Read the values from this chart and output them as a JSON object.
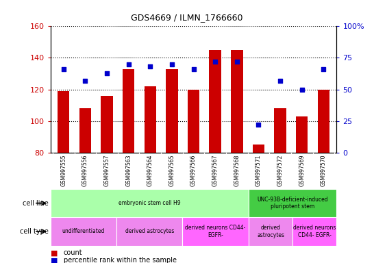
{
  "title": "GDS4669 / ILMN_1766660",
  "samples": [
    "GSM997555",
    "GSM997556",
    "GSM997557",
    "GSM997563",
    "GSM997564",
    "GSM997565",
    "GSM997566",
    "GSM997567",
    "GSM997568",
    "GSM997571",
    "GSM997572",
    "GSM997569",
    "GSM997570"
  ],
  "count_values": [
    119,
    108,
    116,
    133,
    122,
    133,
    120,
    145,
    145,
    85,
    108,
    103,
    120
  ],
  "percentile_values": [
    66,
    57,
    63,
    70,
    68,
    70,
    66,
    72,
    72,
    22,
    57,
    50,
    66
  ],
  "ylim_left": [
    80,
    160
  ],
  "ylim_right": [
    0,
    100
  ],
  "yticks_left": [
    80,
    100,
    120,
    140,
    160
  ],
  "yticks_right": [
    0,
    25,
    50,
    75,
    100
  ],
  "ytick_labels_right": [
    "0",
    "25",
    "50",
    "75",
    "100%"
  ],
  "bar_color": "#cc0000",
  "dot_color": "#0000cc",
  "bar_bottom": 80,
  "cell_line_groups": [
    {
      "label": "embryonic stem cell H9",
      "start": 0,
      "end": 9,
      "color": "#aaffaa"
    },
    {
      "label": "UNC-93B-deficient-induced\npluripotent stem",
      "start": 9,
      "end": 13,
      "color": "#44cc44"
    }
  ],
  "cell_type_groups": [
    {
      "label": "undifferentiated",
      "start": 0,
      "end": 3,
      "color": "#ee88ee"
    },
    {
      "label": "derived astrocytes",
      "start": 3,
      "end": 6,
      "color": "#ee88ee"
    },
    {
      "label": "derived neurons CD44-\nEGFR-",
      "start": 6,
      "end": 9,
      "color": "#ff66ff"
    },
    {
      "label": "derived\nastrocytes",
      "start": 9,
      "end": 11,
      "color": "#ee88ee"
    },
    {
      "label": "derived neurons\nCD44- EGFR-",
      "start": 11,
      "end": 13,
      "color": "#ff66ff"
    }
  ],
  "tick_color_left": "#cc0000",
  "tick_color_right": "#0000cc",
  "xtick_bg_color": "#cccccc",
  "cell_line_label_color": "#000000",
  "cell_type_label_color": "#000000"
}
